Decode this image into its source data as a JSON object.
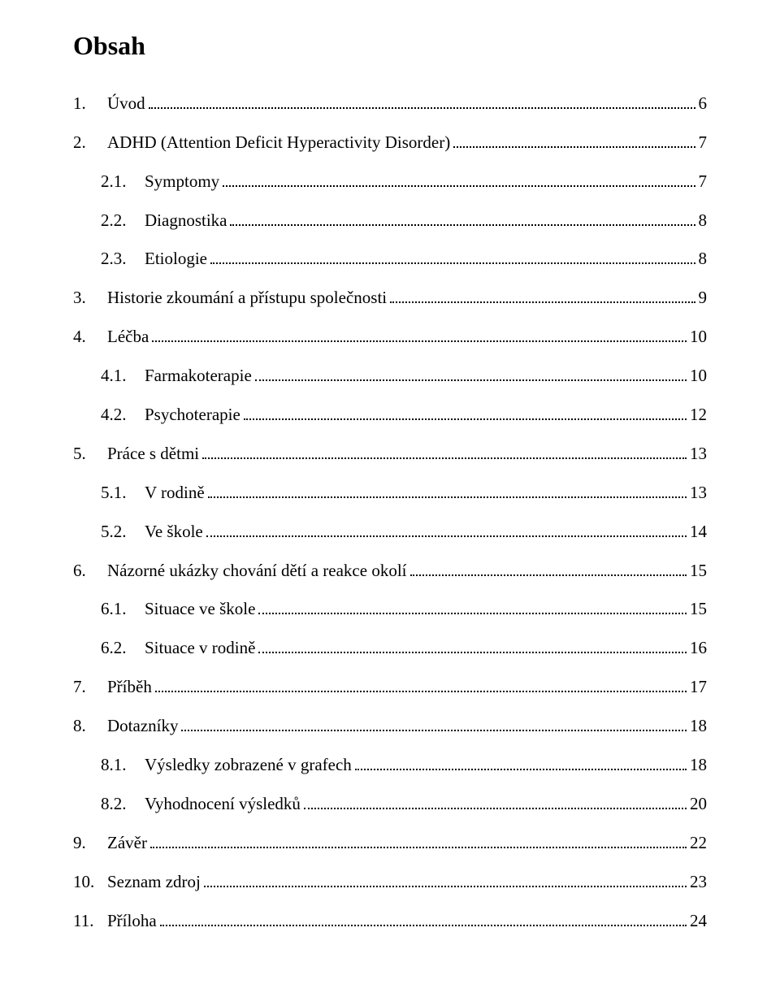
{
  "title": "Obsah",
  "entries": [
    {
      "level": 0,
      "num": "1.",
      "label": "Úvod",
      "page": "6"
    },
    {
      "level": 0,
      "num": "2.",
      "label": "ADHD (Attention Deficit Hyperactivity Disorder)",
      "page": "7"
    },
    {
      "level": 1,
      "num": "2.1.",
      "label": "Symptomy",
      "page": "7"
    },
    {
      "level": 1,
      "num": "2.2.",
      "label": "Diagnostika",
      "page": "8"
    },
    {
      "level": 1,
      "num": "2.3.",
      "label": "Etiologie",
      "page": "8"
    },
    {
      "level": 0,
      "num": "3.",
      "label": "Historie zkoumání a přístupu společnosti",
      "page": "9"
    },
    {
      "level": 0,
      "num": "4.",
      "label": "Léčba",
      "page": "10"
    },
    {
      "level": 1,
      "num": "4.1.",
      "label": "Farmakoterapie",
      "page": "10"
    },
    {
      "level": 1,
      "num": "4.2.",
      "label": "Psychoterapie",
      "page": "12"
    },
    {
      "level": 0,
      "num": "5.",
      "label": "Práce s dětmi",
      "page": "13"
    },
    {
      "level": 1,
      "num": "5.1.",
      "label": "V rodině",
      "page": "13"
    },
    {
      "level": 1,
      "num": "5.2.",
      "label": "Ve škole",
      "page": "14"
    },
    {
      "level": 0,
      "num": "6.",
      "label": "Názorné ukázky chování dětí a reakce okolí",
      "page": "15"
    },
    {
      "level": 1,
      "num": "6.1.",
      "label": "Situace ve škole",
      "page": "15"
    },
    {
      "level": 1,
      "num": "6.2.",
      "label": "Situace v rodině",
      "page": "16"
    },
    {
      "level": 0,
      "num": "7.",
      "label": "Příběh",
      "page": "17"
    },
    {
      "level": 0,
      "num": "8.",
      "label": "Dotazníky",
      "page": "18"
    },
    {
      "level": 1,
      "num": "8.1.",
      "label": "Výsledky zobrazené v grafech",
      "page": "18"
    },
    {
      "level": 1,
      "num": "8.2.",
      "label": "Vyhodnocení výsledků",
      "page": "20"
    },
    {
      "level": 0,
      "num": "9.",
      "label": "Závěr",
      "page": "22"
    },
    {
      "level": 0,
      "num": "10.",
      "label": "Seznam zdroj",
      "page": "23"
    },
    {
      "level": 0,
      "num": "11.",
      "label": "Příloha",
      "page": "24"
    }
  ]
}
